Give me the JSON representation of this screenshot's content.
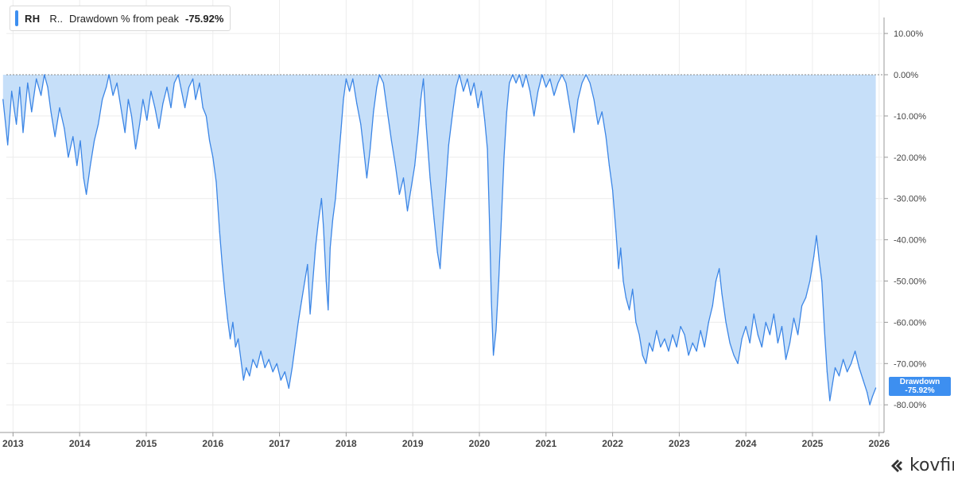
{
  "legend": {
    "ticker": "RH",
    "company_abbrev": "R..",
    "series_label": "Drawdown % from peak",
    "value": "-75.92%"
  },
  "last_value_tag": {
    "label": "Drawdown",
    "value": "-75.92%"
  },
  "branding": {
    "name": "kovfin",
    "icon": "kovfin-logo-icon"
  },
  "colors": {
    "line": "#3c86e6",
    "fill": "#c6dff9",
    "accent": "#3d8ff0",
    "grid": "#ececec",
    "zero_line": "#8a8a8a",
    "tick_text": "#444444"
  },
  "chart_data": {
    "type": "area",
    "title": "",
    "xlabel": "",
    "ylabel": "",
    "x_ticks": [
      "2013",
      "2014",
      "2015",
      "2016",
      "2017",
      "2018",
      "2019",
      "2020",
      "2021",
      "2022",
      "2023",
      "2024",
      "2025",
      "2026"
    ],
    "y_ticks": [
      "10.00%",
      "0.00%",
      "-10.00%",
      "-20.00%",
      "-30.00%",
      "-40.00%",
      "-50.00%",
      "-60.00%",
      "-70.00%",
      "-80.00%"
    ],
    "ylim": [
      -85,
      15
    ],
    "xlim": [
      2012.9,
      2026.05
    ],
    "grid": true,
    "legend_position": "top-left",
    "series": [
      {
        "name": "Drawdown % from peak",
        "points": [
          [
            2012.85,
            -6
          ],
          [
            2012.92,
            -17
          ],
          [
            2012.98,
            -4
          ],
          [
            2013.05,
            -12
          ],
          [
            2013.1,
            -3
          ],
          [
            2013.15,
            -14
          ],
          [
            2013.22,
            -2
          ],
          [
            2013.28,
            -9
          ],
          [
            2013.35,
            -1
          ],
          [
            2013.42,
            -5
          ],
          [
            2013.47,
            0
          ],
          [
            2013.52,
            -3
          ],
          [
            2013.57,
            -9
          ],
          [
            2013.63,
            -15
          ],
          [
            2013.7,
            -8
          ],
          [
            2013.77,
            -13
          ],
          [
            2013.83,
            -20
          ],
          [
            2013.9,
            -15
          ],
          [
            2013.96,
            -22
          ],
          [
            2014.01,
            -16
          ],
          [
            2014.06,
            -25
          ],
          [
            2014.1,
            -29
          ],
          [
            2014.16,
            -22
          ],
          [
            2014.22,
            -16
          ],
          [
            2014.28,
            -12
          ],
          [
            2014.34,
            -6
          ],
          [
            2014.4,
            -3
          ],
          [
            2014.44,
            0
          ],
          [
            2014.5,
            -5
          ],
          [
            2014.56,
            -2
          ],
          [
            2014.62,
            -8
          ],
          [
            2014.68,
            -14
          ],
          [
            2014.73,
            -6
          ],
          [
            2014.78,
            -10
          ],
          [
            2014.84,
            -18
          ],
          [
            2014.9,
            -12
          ],
          [
            2014.95,
            -6
          ],
          [
            2015.01,
            -11
          ],
          [
            2015.07,
            -4
          ],
          [
            2015.13,
            -8
          ],
          [
            2015.19,
            -13
          ],
          [
            2015.25,
            -7
          ],
          [
            2015.31,
            -3
          ],
          [
            2015.37,
            -8
          ],
          [
            2015.42,
            -2
          ],
          [
            2015.48,
            0
          ],
          [
            2015.53,
            -4
          ],
          [
            2015.58,
            -8
          ],
          [
            2015.64,
            -3
          ],
          [
            2015.7,
            -1
          ],
          [
            2015.74,
            -6
          ],
          [
            2015.8,
            -2
          ],
          [
            2015.85,
            -8
          ],
          [
            2015.9,
            -10
          ],
          [
            2015.95,
            -16
          ],
          [
            2016.0,
            -20
          ],
          [
            2016.05,
            -26
          ],
          [
            2016.1,
            -38
          ],
          [
            2016.14,
            -46
          ],
          [
            2016.18,
            -53
          ],
          [
            2016.22,
            -59
          ],
          [
            2016.26,
            -64
          ],
          [
            2016.3,
            -60
          ],
          [
            2016.34,
            -66
          ],
          [
            2016.38,
            -64
          ],
          [
            2016.42,
            -69
          ],
          [
            2016.46,
            -74
          ],
          [
            2016.5,
            -71
          ],
          [
            2016.55,
            -73
          ],
          [
            2016.6,
            -69
          ],
          [
            2016.66,
            -71
          ],
          [
            2016.72,
            -67
          ],
          [
            2016.78,
            -71
          ],
          [
            2016.84,
            -69
          ],
          [
            2016.9,
            -72
          ],
          [
            2016.96,
            -70
          ],
          [
            2017.02,
            -74
          ],
          [
            2017.08,
            -72
          ],
          [
            2017.14,
            -76
          ],
          [
            2017.19,
            -71
          ],
          [
            2017.24,
            -65
          ],
          [
            2017.28,
            -60
          ],
          [
            2017.33,
            -55
          ],
          [
            2017.38,
            -50
          ],
          [
            2017.42,
            -46
          ],
          [
            2017.46,
            -58
          ],
          [
            2017.5,
            -50
          ],
          [
            2017.54,
            -42
          ],
          [
            2017.58,
            -36
          ],
          [
            2017.63,
            -30
          ],
          [
            2017.66,
            -37
          ],
          [
            2017.7,
            -50
          ],
          [
            2017.73,
            -57
          ],
          [
            2017.76,
            -42
          ],
          [
            2017.8,
            -35
          ],
          [
            2017.84,
            -30
          ],
          [
            2017.88,
            -22
          ],
          [
            2017.92,
            -14
          ],
          [
            2017.96,
            -6
          ],
          [
            2018.0,
            -1
          ],
          [
            2018.05,
            -4
          ],
          [
            2018.1,
            -1
          ],
          [
            2018.16,
            -7
          ],
          [
            2018.22,
            -12
          ],
          [
            2018.27,
            -19
          ],
          [
            2018.31,
            -25
          ],
          [
            2018.36,
            -18
          ],
          [
            2018.41,
            -9
          ],
          [
            2018.46,
            -3
          ],
          [
            2018.5,
            0
          ],
          [
            2018.56,
            -2
          ],
          [
            2018.62,
            -9
          ],
          [
            2018.68,
            -16
          ],
          [
            2018.74,
            -22
          ],
          [
            2018.8,
            -29
          ],
          [
            2018.86,
            -25
          ],
          [
            2018.92,
            -33
          ],
          [
            2018.97,
            -28
          ],
          [
            2019.03,
            -22
          ],
          [
            2019.08,
            -14
          ],
          [
            2019.12,
            -6
          ],
          [
            2019.16,
            -1
          ],
          [
            2019.2,
            -12
          ],
          [
            2019.26,
            -25
          ],
          [
            2019.32,
            -35
          ],
          [
            2019.37,
            -43
          ],
          [
            2019.41,
            -47
          ],
          [
            2019.45,
            -37
          ],
          [
            2019.5,
            -26
          ],
          [
            2019.54,
            -17
          ],
          [
            2019.6,
            -9
          ],
          [
            2019.65,
            -3
          ],
          [
            2019.7,
            0
          ],
          [
            2019.76,
            -4
          ],
          [
            2019.82,
            -1
          ],
          [
            2019.87,
            -5
          ],
          [
            2019.92,
            -2
          ],
          [
            2019.98,
            -8
          ],
          [
            2020.03,
            -4
          ],
          [
            2020.08,
            -11
          ],
          [
            2020.12,
            -18
          ],
          [
            2020.15,
            -35
          ],
          [
            2020.18,
            -55
          ],
          [
            2020.21,
            -68
          ],
          [
            2020.25,
            -62
          ],
          [
            2020.29,
            -50
          ],
          [
            2020.33,
            -35
          ],
          [
            2020.37,
            -20
          ],
          [
            2020.41,
            -9
          ],
          [
            2020.45,
            -2
          ],
          [
            2020.5,
            0
          ],
          [
            2020.55,
            -2
          ],
          [
            2020.6,
            0
          ],
          [
            2020.65,
            -3
          ],
          [
            2020.7,
            0
          ],
          [
            2020.76,
            -4
          ],
          [
            2020.82,
            -10
          ],
          [
            2020.88,
            -4
          ],
          [
            2020.94,
            0
          ],
          [
            2021.0,
            -3
          ],
          [
            2021.06,
            -1
          ],
          [
            2021.12,
            -5
          ],
          [
            2021.18,
            -2
          ],
          [
            2021.24,
            0
          ],
          [
            2021.3,
            -2
          ],
          [
            2021.36,
            -8
          ],
          [
            2021.42,
            -14
          ],
          [
            2021.48,
            -6
          ],
          [
            2021.54,
            -2
          ],
          [
            2021.6,
            0
          ],
          [
            2021.66,
            -2
          ],
          [
            2021.72,
            -6
          ],
          [
            2021.78,
            -12
          ],
          [
            2021.84,
            -9
          ],
          [
            2021.9,
            -15
          ],
          [
            2021.95,
            -22
          ],
          [
            2022.0,
            -28
          ],
          [
            2022.05,
            -38
          ],
          [
            2022.09,
            -47
          ],
          [
            2022.12,
            -42
          ],
          [
            2022.16,
            -50
          ],
          [
            2022.2,
            -54
          ],
          [
            2022.25,
            -57
          ],
          [
            2022.3,
            -52
          ],
          [
            2022.35,
            -60
          ],
          [
            2022.4,
            -63
          ],
          [
            2022.45,
            -68
          ],
          [
            2022.5,
            -70
          ],
          [
            2022.55,
            -65
          ],
          [
            2022.6,
            -67
          ],
          [
            2022.66,
            -62
          ],
          [
            2022.72,
            -66
          ],
          [
            2022.78,
            -64
          ],
          [
            2022.84,
            -67
          ],
          [
            2022.9,
            -63
          ],
          [
            2022.96,
            -66
          ],
          [
            2023.02,
            -61
          ],
          [
            2023.08,
            -63
          ],
          [
            2023.14,
            -68
          ],
          [
            2023.2,
            -65
          ],
          [
            2023.26,
            -67
          ],
          [
            2023.32,
            -62
          ],
          [
            2023.38,
            -66
          ],
          [
            2023.44,
            -60
          ],
          [
            2023.5,
            -56
          ],
          [
            2023.55,
            -50
          ],
          [
            2023.6,
            -47
          ],
          [
            2023.64,
            -53
          ],
          [
            2023.7,
            -60
          ],
          [
            2023.76,
            -65
          ],
          [
            2023.82,
            -68
          ],
          [
            2023.88,
            -70
          ],
          [
            2023.94,
            -64
          ],
          [
            2024.0,
            -61
          ],
          [
            2024.06,
            -65
          ],
          [
            2024.12,
            -58
          ],
          [
            2024.18,
            -63
          ],
          [
            2024.24,
            -66
          ],
          [
            2024.3,
            -60
          ],
          [
            2024.36,
            -63
          ],
          [
            2024.42,
            -58
          ],
          [
            2024.48,
            -65
          ],
          [
            2024.54,
            -61
          ],
          [
            2024.6,
            -69
          ],
          [
            2024.66,
            -65
          ],
          [
            2024.72,
            -59
          ],
          [
            2024.78,
            -63
          ],
          [
            2024.84,
            -56
          ],
          [
            2024.9,
            -54
          ],
          [
            2024.96,
            -50
          ],
          [
            2025.02,
            -44
          ],
          [
            2025.06,
            -39
          ],
          [
            2025.1,
            -45
          ],
          [
            2025.14,
            -50
          ],
          [
            2025.18,
            -62
          ],
          [
            2025.22,
            -72
          ],
          [
            2025.26,
            -79
          ],
          [
            2025.3,
            -75
          ],
          [
            2025.34,
            -71
          ],
          [
            2025.4,
            -73
          ],
          [
            2025.46,
            -69
          ],
          [
            2025.52,
            -72
          ],
          [
            2025.58,
            -70
          ],
          [
            2025.64,
            -67
          ],
          [
            2025.7,
            -71
          ],
          [
            2025.76,
            -74
          ],
          [
            2025.82,
            -77
          ],
          [
            2025.86,
            -80
          ],
          [
            2025.9,
            -78
          ],
          [
            2025.95,
            -75.92
          ]
        ]
      }
    ]
  }
}
